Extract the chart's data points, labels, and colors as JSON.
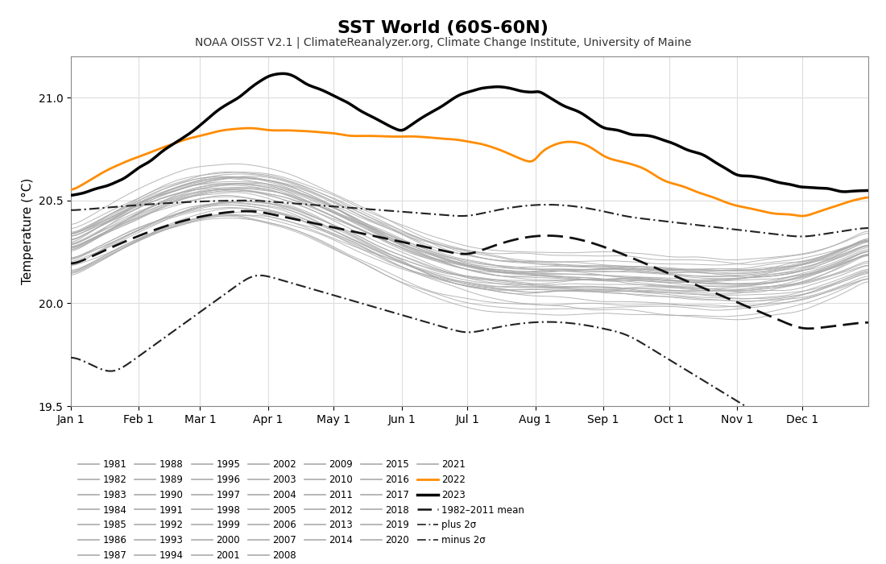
{
  "title": "SST World (60S-60N)",
  "subtitle": "NOAA OISST V2.1 | ClimateReanalyzer.org, Climate Change Institute, University of Maine",
  "ylabel": "Temperature (°C)",
  "ylim": [
    19.5,
    21.2
  ],
  "yticks": [
    19.5,
    20.0,
    20.5,
    21.0
  ],
  "xtick_labels": [
    "Jan 1",
    "Feb 1",
    "Mar 1",
    "Apr 1",
    "May 1",
    "Jun 1",
    "Jul 1",
    "Aug 1",
    "Sep 1",
    "Oct 1",
    "Nov 1",
    "Dec 1"
  ],
  "xtick_positions": [
    1,
    32,
    60,
    91,
    121,
    152,
    182,
    213,
    244,
    274,
    305,
    335
  ],
  "background_color": "#ffffff",
  "gray_color": "#aaaaaa",
  "mean_color": "#111111",
  "sigma_color": "#333333",
  "year2022_color": "#ff8c00",
  "year2023_color": "#000000",
  "title_fontsize": 16,
  "subtitle_fontsize": 10,
  "axis_fontsize": 11,
  "tick_fontsize": 10
}
